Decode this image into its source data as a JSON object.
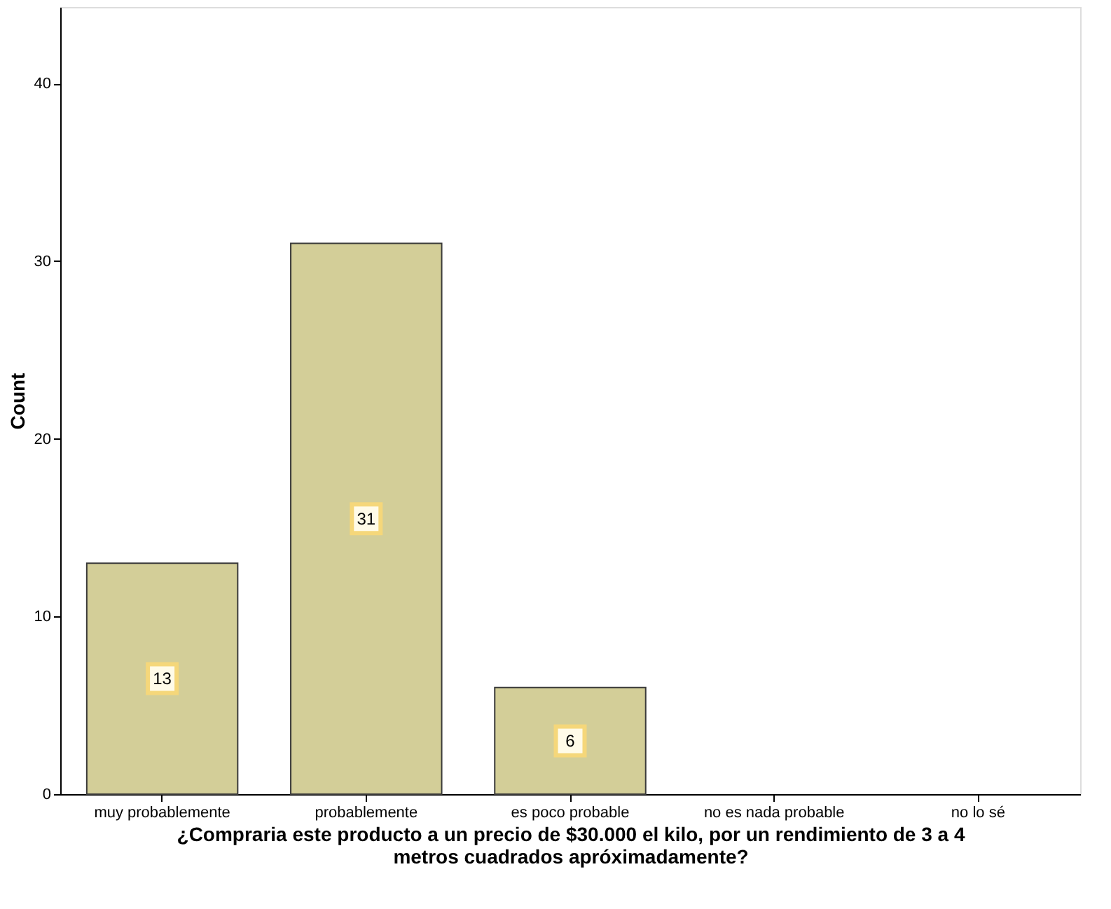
{
  "chart_data": {
    "type": "bar",
    "categories": [
      "muy probablemente",
      "probablemente",
      "es poco probable",
      "no es nada probable",
      "no lo sé"
    ],
    "values": [
      13,
      31,
      6,
      null,
      null
    ],
    "color": "#d3ce98",
    "ylabel": "Count",
    "xlabel": "¿Compraria este producto a un precio de $30.000 el kilo, por un rendimiento de 3 a 4 metros cuadrados apróximadamente?",
    "ylim": [
      0,
      44.3
    ],
    "yticks": [
      0,
      10,
      20,
      30,
      40
    ],
    "grid": false,
    "data_labels": true
  }
}
